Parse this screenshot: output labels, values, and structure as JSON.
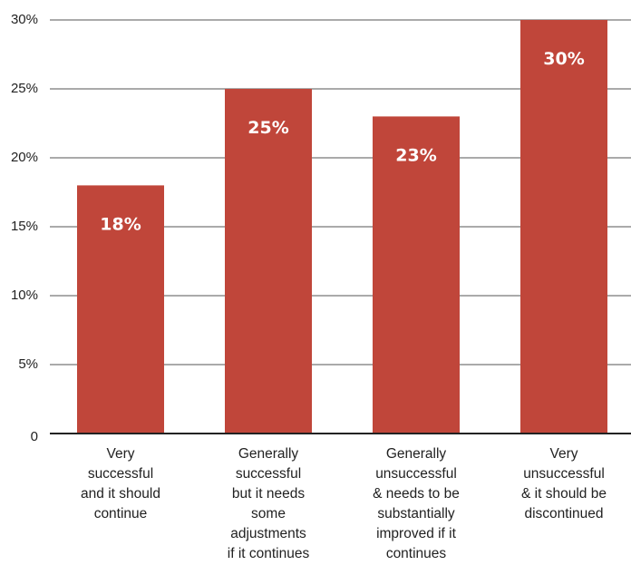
{
  "chart_data": {
    "type": "bar",
    "categories": [
      [
        "Very",
        "successful",
        "and it should",
        "continue"
      ],
      [
        "Generally",
        "successful",
        "but it needs",
        "some",
        "adjustments",
        "if it continues"
      ],
      [
        "Generally",
        "unsuccessful",
        "& needs to be",
        "substantially",
        "improved if it",
        "continues"
      ],
      [
        "Very",
        "unsuccessful",
        "& it should be",
        "discontinued"
      ]
    ],
    "values": [
      18,
      25,
      23,
      30
    ],
    "data_labels": [
      "18%",
      "25%",
      "23%",
      "30%"
    ],
    "ylim": [
      0,
      30
    ],
    "y_ticks": [
      0,
      5,
      10,
      15,
      20,
      25,
      30
    ],
    "y_tick_labels": [
      "0",
      "5%",
      "10%",
      "15%",
      "20%",
      "25%",
      "30%"
    ],
    "grid": true,
    "bar_color": "#c0463a",
    "title": "",
    "xlabel": "",
    "ylabel": ""
  }
}
